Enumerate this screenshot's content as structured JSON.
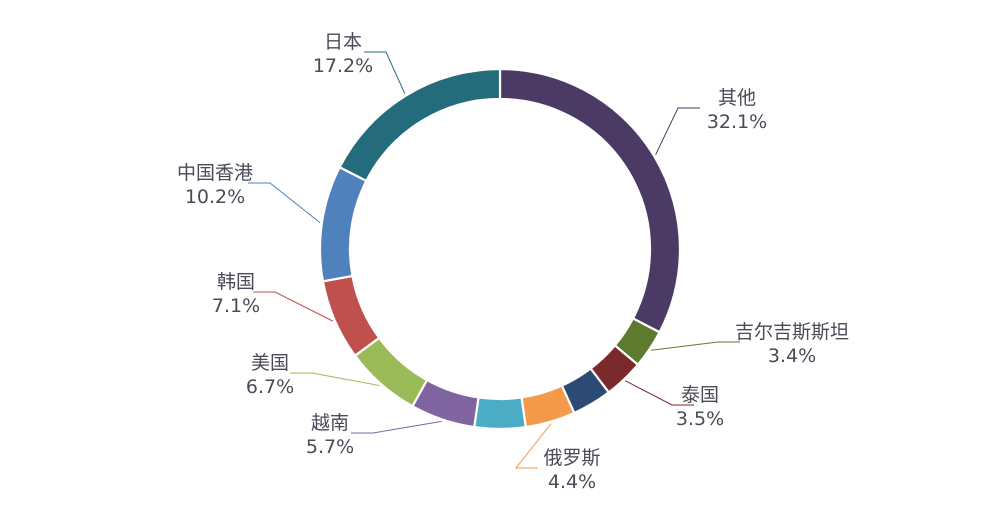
{
  "chart_data": {
    "type": "pie",
    "title": "",
    "slices": [
      {
        "label": "其他",
        "value": 32.1,
        "value_text": "32.1%",
        "color": "#4b3a63",
        "leader_color": "#4b3a63"
      },
      {
        "label": "吉尔吉斯斯坦",
        "value": 3.4,
        "value_text": "3.4%",
        "color": "#5e7a2e",
        "leader_color": "#5e7a2e"
      },
      {
        "label": "泰国",
        "value": 3.5,
        "value_text": "3.5%",
        "color": "#7a2a2a",
        "leader_color": "#7a2a2a"
      },
      {
        "label": "",
        "value": 3.5,
        "value_text": "",
        "color": "#2c4a74",
        "leader_color": "#2c4a74"
      },
      {
        "label": "俄罗斯",
        "value": 4.4,
        "value_text": "4.4%",
        "color": "#f39a4b",
        "leader_color": "#f39a4b"
      },
      {
        "label": "",
        "value": 4.5,
        "value_text": "",
        "color": "#4bacc6",
        "leader_color": "#4bacc6"
      },
      {
        "label": "越南",
        "value": 5.7,
        "value_text": "5.7%",
        "color": "#8064a2",
        "leader_color": "#8064a2"
      },
      {
        "label": "美国",
        "value": 6.7,
        "value_text": "6.7%",
        "color": "#9bbb59",
        "leader_color": "#9bbb59"
      },
      {
        "label": "韩国",
        "value": 7.1,
        "value_text": "7.1%",
        "color": "#c0504d",
        "leader_color": "#c0504d"
      },
      {
        "label": "中国香港",
        "value": 10.2,
        "value_text": "10.2%",
        "color": "#4f81bd",
        "leader_color": "#4f81bd"
      },
      {
        "label": "日本",
        "value": 17.2,
        "value_text": "17.2%",
        "color": "#246c7c",
        "leader_color": "#246c7c"
      }
    ]
  }
}
